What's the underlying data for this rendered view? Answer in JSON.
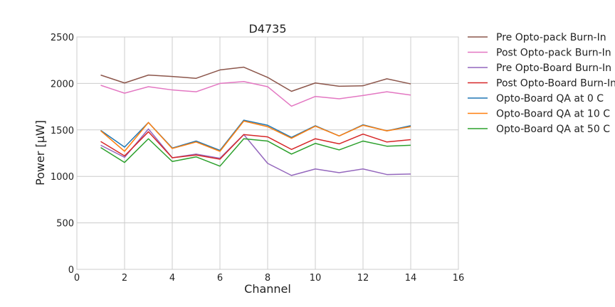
{
  "chart_data": {
    "type": "line",
    "title": "D4735",
    "xlabel": "Channel",
    "ylabel": "Power [μW]",
    "xlim": [
      0,
      16
    ],
    "ylim": [
      0,
      2500
    ],
    "xticks": [
      0,
      2,
      4,
      6,
      8,
      10,
      12,
      14,
      16
    ],
    "yticks": [
      0,
      500,
      1000,
      1500,
      2000,
      2500
    ],
    "grid": true,
    "legend_position": "outside-right",
    "x": [
      1,
      2,
      3,
      4,
      5,
      6,
      7,
      8,
      9,
      10,
      11,
      12,
      13,
      14
    ],
    "series": [
      {
        "name": "Pre Opto-pack Burn-In",
        "color": "#8c564b",
        "values": [
          2090,
          2005,
          2090,
          2075,
          2055,
          2145,
          2175,
          2065,
          1915,
          2005,
          1970,
          1975,
          2050,
          1995
        ]
      },
      {
        "name": "Post Opto-pack Burn-In",
        "color": "#e377c2",
        "values": [
          1980,
          1895,
          1965,
          1930,
          1910,
          2000,
          2020,
          1965,
          1755,
          1860,
          1835,
          1870,
          1910,
          1875
        ]
      },
      {
        "name": "Pre Opto-Board Burn-In",
        "color": "#9467bd",
        "values": [
          1335,
          1205,
          1510,
          1200,
          1240,
          1195,
          1450,
          1140,
          1010,
          1080,
          1040,
          1080,
          1020,
          1025
        ]
      },
      {
        "name": "Post Opto-Board Burn-In",
        "color": "#d62728",
        "values": [
          1375,
          1220,
          1480,
          1200,
          1230,
          1185,
          1450,
          1425,
          1290,
          1405,
          1350,
          1455,
          1370,
          1395
        ]
      },
      {
        "name": "Opto-Board QA at 0 C",
        "color": "#1f77b4",
        "values": [
          1495,
          1315,
          1580,
          1305,
          1380,
          1280,
          1605,
          1550,
          1420,
          1545,
          1435,
          1555,
          1490,
          1545
        ]
      },
      {
        "name": "Opto-Board QA at 10 C",
        "color": "#ff7f0e",
        "values": [
          1490,
          1270,
          1580,
          1300,
          1370,
          1270,
          1595,
          1535,
          1410,
          1540,
          1435,
          1550,
          1490,
          1535
        ]
      },
      {
        "name": "Opto-Board QA at 50 C",
        "color": "#2ca02c",
        "values": [
          1310,
          1150,
          1405,
          1160,
          1210,
          1110,
          1405,
          1380,
          1240,
          1355,
          1285,
          1380,
          1325,
          1335
        ]
      }
    ]
  }
}
